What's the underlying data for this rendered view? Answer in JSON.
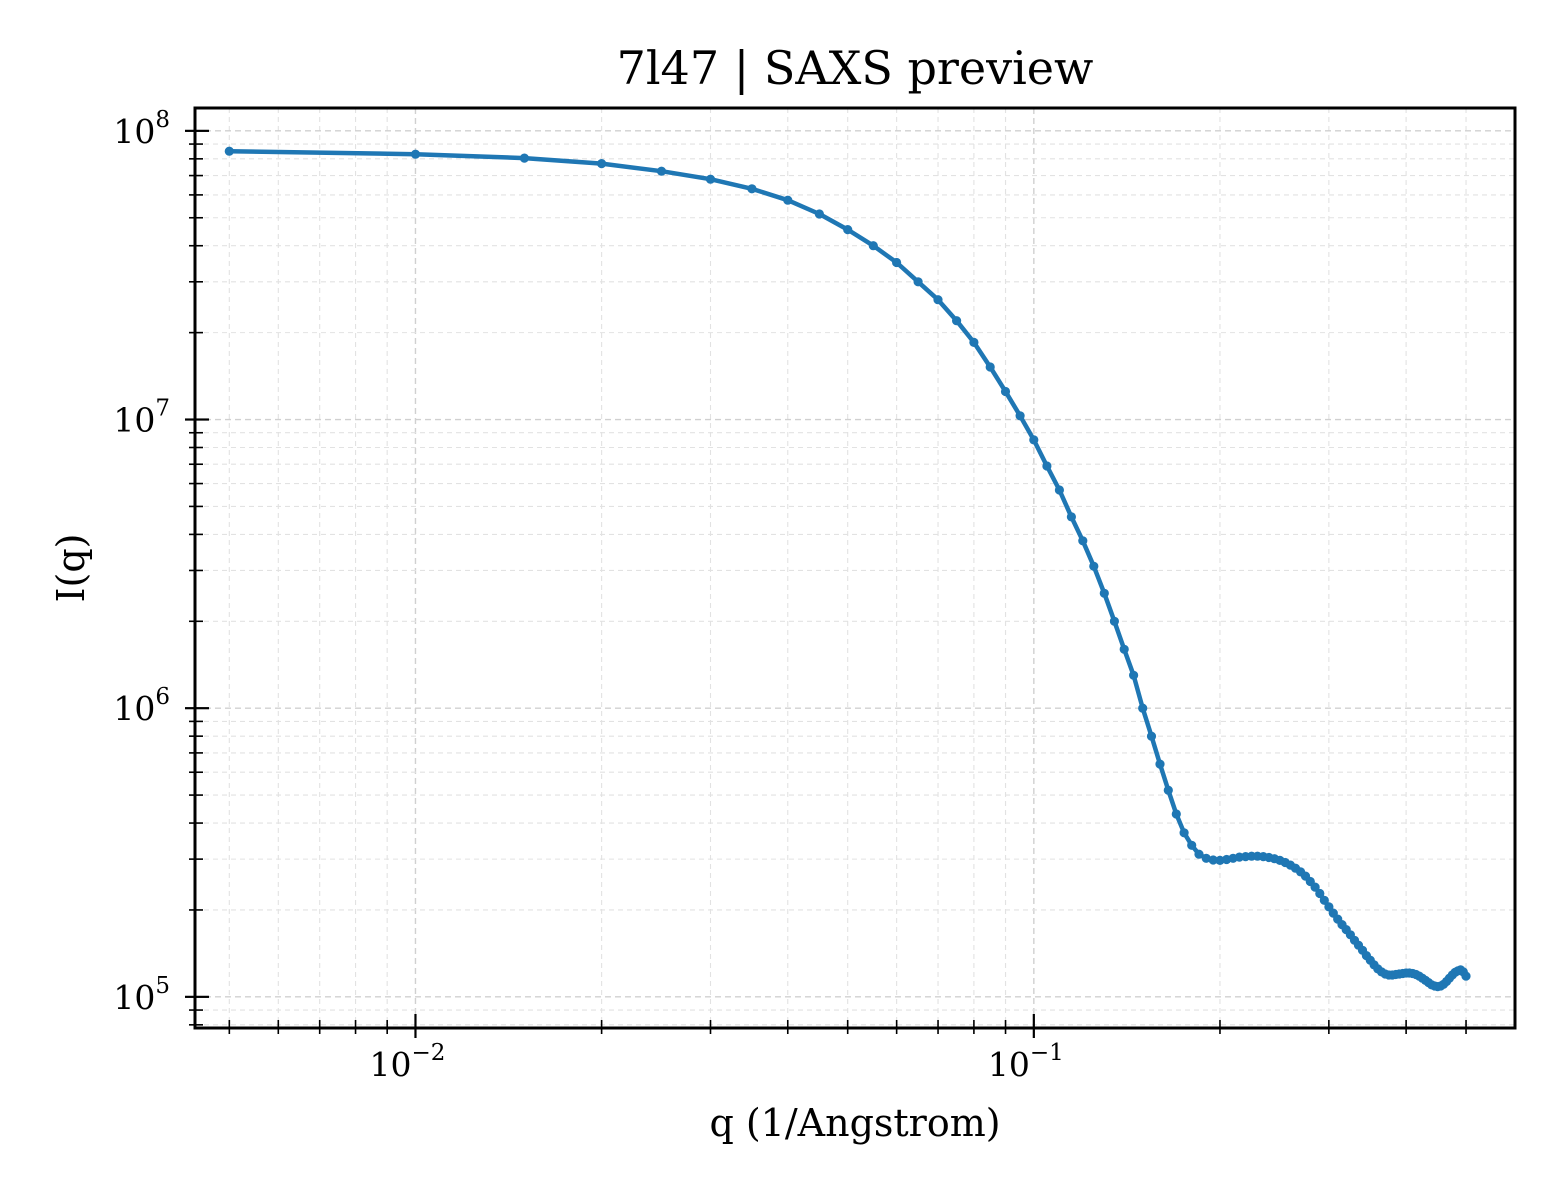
{
  "chart_data": {
    "type": "line",
    "title": "7l47 | SAXS preview",
    "xlabel": "q (1/Angstrom)",
    "ylabel": "I(q)",
    "xscale": "log",
    "yscale": "log",
    "xlim": [
      0.0044,
      0.6
    ],
    "ylim": [
      78000,
      120000000
    ],
    "grid": true,
    "legend": "none",
    "color": "#1f77b4",
    "x_ticks": [
      {
        "value": 0.01,
        "base": "10",
        "exp": "−2"
      },
      {
        "value": 0.1,
        "base": "10",
        "exp": "−1"
      }
    ],
    "y_ticks": [
      {
        "value": 100000,
        "base": "10",
        "exp": "5"
      },
      {
        "value": 1000000,
        "base": "10",
        "exp": "6"
      },
      {
        "value": 10000000,
        "base": "10",
        "exp": "7"
      },
      {
        "value": 100000000,
        "base": "10",
        "exp": "8"
      }
    ],
    "series": [
      {
        "x": [
          0.005,
          0.01,
          0.015,
          0.02,
          0.025,
          0.03,
          0.035,
          0.04,
          0.045,
          0.05,
          0.055,
          0.06,
          0.065,
          0.07,
          0.075,
          0.08,
          0.085,
          0.09,
          0.095,
          0.1,
          0.105,
          0.11,
          0.115,
          0.12,
          0.125,
          0.13,
          0.135,
          0.14,
          0.145,
          0.15,
          0.155,
          0.16,
          0.165,
          0.17,
          0.175,
          0.18,
          0.185,
          0.19,
          0.195,
          0.2,
          0.205,
          0.21,
          0.215,
          0.22,
          0.225,
          0.23,
          0.235,
          0.24,
          0.245,
          0.25,
          0.255,
          0.26,
          0.265,
          0.27,
          0.275,
          0.28,
          0.285,
          0.29,
          0.295,
          0.3,
          0.305,
          0.31,
          0.315,
          0.32,
          0.325,
          0.33,
          0.335,
          0.34,
          0.345,
          0.35,
          0.355,
          0.36,
          0.365,
          0.37,
          0.375,
          0.38,
          0.385,
          0.39,
          0.395,
          0.4,
          0.405,
          0.41,
          0.415,
          0.42,
          0.425,
          0.43,
          0.435,
          0.44,
          0.445,
          0.45,
          0.455,
          0.46,
          0.465,
          0.47,
          0.475,
          0.48,
          0.485,
          0.49,
          0.495,
          0.5
        ],
        "y": [
          85000000,
          83000000,
          80500000,
          77000000,
          72500000,
          68000000,
          63000000,
          57500000,
          51500000,
          45500000,
          40000000,
          35000000,
          30000000,
          26000000,
          22000000,
          18500000,
          15200000,
          12500000,
          10300000,
          8500000,
          6900000,
          5700000,
          4600000,
          3800000,
          3100000,
          2500000,
          2000000,
          1600000,
          1300000,
          1000000,
          800000,
          640000,
          520000,
          430000,
          370000,
          335000,
          312000,
          302000,
          298000,
          297000,
          299000,
          302000,
          305000,
          306000,
          307000,
          307000,
          306000,
          304000,
          301000,
          297000,
          292000,
          286000,
          279000,
          271000,
          262000,
          251000,
          240000,
          228000,
          216000,
          205000,
          195000,
          186000,
          178000,
          171000,
          164000,
          157000,
          151000,
          145000,
          139000,
          134000,
          129000,
          125000,
          122000,
          120000,
          119000,
          119000,
          119500,
          120000,
          120500,
          121000,
          121000,
          120500,
          119500,
          118000,
          116000,
          114000,
          112000,
          110000,
          109000,
          108500,
          109000,
          110500,
          113000,
          116000,
          119000,
          121500,
          123000,
          124000,
          122000,
          118000
        ]
      }
    ]
  }
}
